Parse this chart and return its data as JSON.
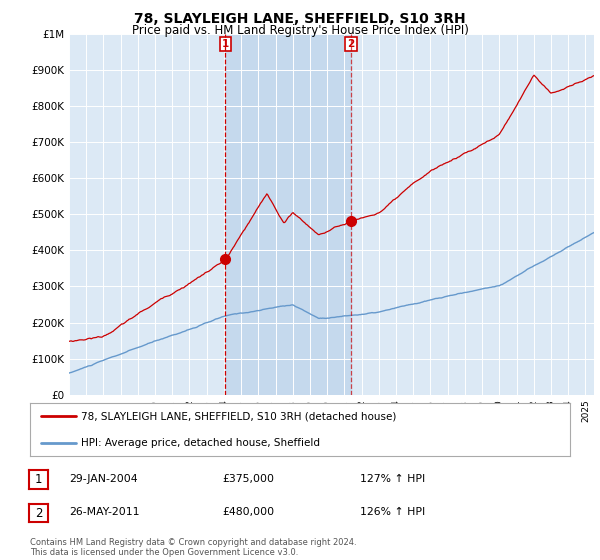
{
  "title": "78, SLAYLEIGH LANE, SHEFFIELD, S10 3RH",
  "subtitle": "Price paid vs. HM Land Registry's House Price Index (HPI)",
  "title_fontsize": 10,
  "subtitle_fontsize": 8.5,
  "background_color": "#ffffff",
  "chart_bg_color": "#dce9f5",
  "highlight_color": "#c5d9ed",
  "ylim": [
    0,
    1000000
  ],
  "yticks": [
    0,
    100000,
    200000,
    300000,
    400000,
    500000,
    600000,
    700000,
    800000,
    900000,
    1000000
  ],
  "ytick_labels": [
    "£0",
    "£100K",
    "£200K",
    "£300K",
    "£400K",
    "£500K",
    "£600K",
    "£700K",
    "£800K",
    "£900K",
    "£1M"
  ],
  "sale1_date": 2004.08,
  "sale1_price": 375000,
  "sale2_date": 2011.39,
  "sale2_price": 480000,
  "hpi_color": "#6699cc",
  "price_color": "#cc0000",
  "legend_line1": "78, SLAYLEIGH LANE, SHEFFIELD, S10 3RH (detached house)",
  "legend_line2": "HPI: Average price, detached house, Sheffield",
  "table_rows": [
    {
      "num": "1",
      "date": "29-JAN-2004",
      "price": "£375,000",
      "hpi": "127% ↑ HPI"
    },
    {
      "num": "2",
      "date": "26-MAY-2011",
      "price": "£480,000",
      "hpi": "126% ↑ HPI"
    }
  ],
  "footnote": "Contains HM Land Registry data © Crown copyright and database right 2024.\nThis data is licensed under the Open Government Licence v3.0.",
  "xlim_start": 1995,
  "xlim_end": 2025.5
}
